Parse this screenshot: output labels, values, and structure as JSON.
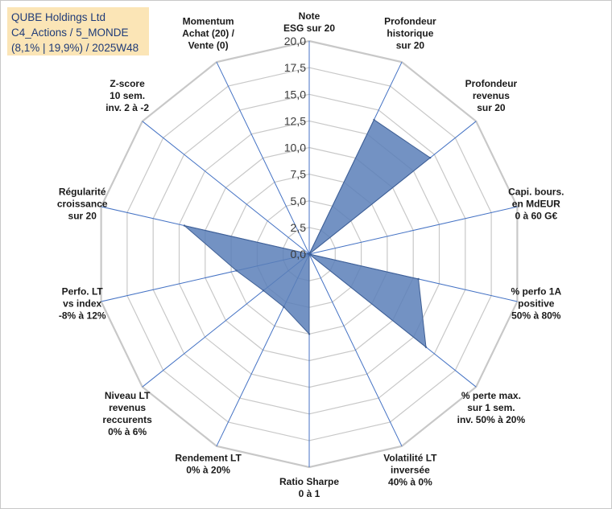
{
  "header": {
    "company": "QUBE Holdings Ltd",
    "portfolio": "C4_Actions / 5_MONDE",
    "stats": "(8,1% | 19,9%) / 2025W48"
  },
  "chart_data": {
    "type": "radar",
    "title": "QUBE Holdings Ltd",
    "rmin": 0,
    "rmax": 20,
    "tick_step": 2.5,
    "tick_labels": [
      "0,0",
      "2,5",
      "5,0",
      "7,5",
      "10,0",
      "12,5",
      "15,0",
      "17,5",
      "20,0"
    ],
    "colors": {
      "fill": "#5b7fb9",
      "edge": "#3f5f94",
      "grid": "#c8c8c8",
      "spoke": "#4472c4"
    },
    "axes": [
      {
        "label": [
          "Note",
          "ESG sur 20"
        ],
        "value": 0
      },
      {
        "label": [
          "Profondeur",
          "historique",
          "sur 20"
        ],
        "value": 14
      },
      {
        "label": [
          "Profondeur",
          "revenus",
          "sur 20"
        ],
        "value": 14.5
      },
      {
        "label": [
          "Capi. bours.",
          "en MdEUR",
          "0 à 60 G€"
        ],
        "value": 0
      },
      {
        "label": [
          "% perfo 1A",
          "positive",
          "50% à 80%"
        ],
        "value": 10.5
      },
      {
        "label": [
          "% perte max.",
          "sur 1 sem.",
          "inv. 50% à 20%"
        ],
        "value": 14
      },
      {
        "label": [
          "Volatilité LT",
          "inversée",
          "40% à 0%"
        ],
        "value": 0
      },
      {
        "label": [
          "Ratio Sharpe",
          "0 à 1"
        ],
        "value": 7.5
      },
      {
        "label": [
          "Rendement LT",
          "0% à 20%"
        ],
        "value": 5.5
      },
      {
        "label": [
          "Niveau LT",
          "revenus",
          "reccurents",
          "0% à 6%"
        ],
        "value": 5.5
      },
      {
        "label": [
          "Perfo. LT",
          "vs index",
          "-8% à 12%"
        ],
        "value": 7
      },
      {
        "label": [
          "Régularité",
          "croissance",
          "sur 20"
        ],
        "value": 12
      },
      {
        "label": [
          "Z-score",
          "10 sem.",
          "inv. 2 à -2"
        ],
        "value": 0
      },
      {
        "label": [
          "Momentum",
          "Achat (20) /",
          "Vente (0)"
        ],
        "value": 0
      }
    ]
  }
}
